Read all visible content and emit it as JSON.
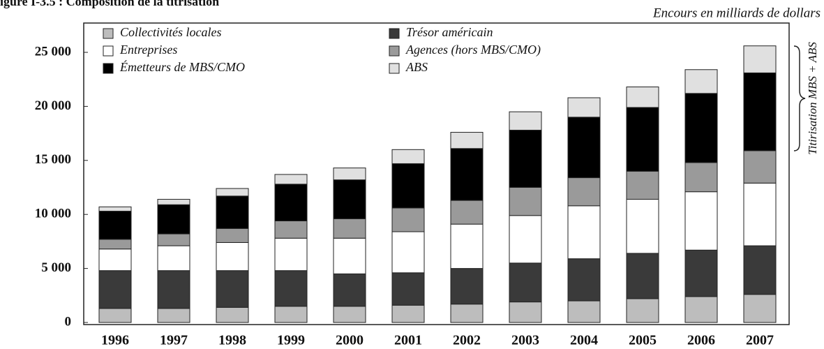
{
  "chart_data": {
    "type": "stacked-bar",
    "title": "igure I-3.5 : Composition de la titrisation",
    "subtitle": "Encours en milliards de dollars",
    "annotation": "Titirisation MBS + ABS",
    "categories": [
      "1996",
      "1997",
      "1998",
      "1999",
      "2000",
      "2001",
      "2002",
      "2003",
      "2004",
      "2005",
      "2006",
      "2007"
    ],
    "series": [
      {
        "name": "Collectivités locales",
        "color": "#bdbdbd",
        "values": [
          1300,
          1300,
          1400,
          1500,
          1500,
          1600,
          1700,
          1900,
          2000,
          2200,
          2400,
          2600
        ]
      },
      {
        "name": "Trésor américain",
        "color": "#3a3a3a",
        "values": [
          3500,
          3500,
          3400,
          3300,
          3000,
          3000,
          3300,
          3600,
          3900,
          4200,
          4300,
          4500
        ]
      },
      {
        "name": "Entreprises",
        "color": "#ffffff",
        "values": [
          2000,
          2300,
          2600,
          3000,
          3300,
          3800,
          4100,
          4400,
          4900,
          5000,
          5400,
          5800
        ]
      },
      {
        "name": "Agences (hors MBS/CMO)",
        "color": "#9a9a9a",
        "values": [
          900,
          1100,
          1300,
          1600,
          1800,
          2200,
          2200,
          2600,
          2600,
          2600,
          2700,
          3000
        ]
      },
      {
        "name": "Émetteurs de MBS/CMO",
        "color": "#000000",
        "values": [
          2600,
          2700,
          3000,
          3400,
          3600,
          4100,
          4800,
          5300,
          5600,
          5900,
          6400,
          7200
        ]
      },
      {
        "name": "ABS",
        "color": "#e0e0e0",
        "values": [
          400,
          500,
          700,
          900,
          1100,
          1300,
          1500,
          1700,
          1800,
          1900,
          2200,
          2500
        ]
      }
    ],
    "ylim": [
      0,
      25000
    ],
    "yticks": [
      0,
      {
        "value": 5000,
        "label": "5 000"
      },
      {
        "value": 10000,
        "label": "10 000"
      },
      {
        "value": 15000,
        "label": "15 000"
      },
      {
        "value": 20000,
        "label": "20 000"
      },
      {
        "value": 25000,
        "label": "25 000"
      }
    ]
  }
}
